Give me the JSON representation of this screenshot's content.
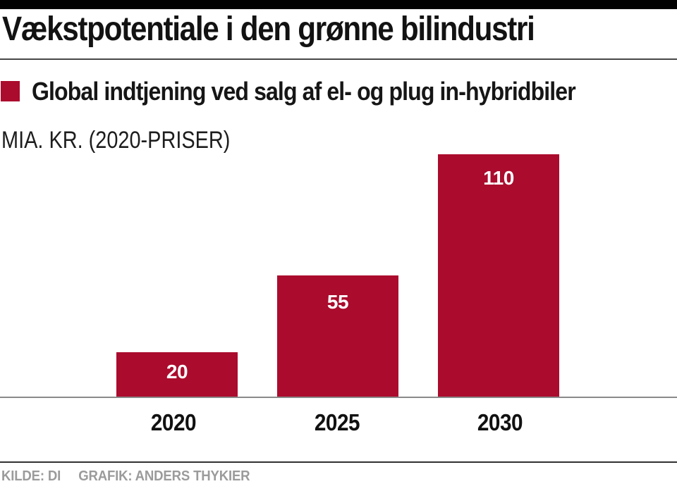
{
  "header": {
    "title": "Vækstpotentiale i den grønne bilindustri"
  },
  "legend": {
    "label": "Global indtjening ved salg af el- og plug in-hybridbiler",
    "swatch_color": "#AB0B2D"
  },
  "chart_data": {
    "type": "bar",
    "title": "Vækstpotentiale i den grønne bilindustri",
    "series_label": "Global indtjening ved salg af el- og plug in-hybridbiler",
    "unit_label": "MIA. KR. (2020-PRISER)",
    "categories": [
      "2020",
      "2025",
      "2030"
    ],
    "values": [
      20,
      55,
      110
    ],
    "ylabel": "MIA. KR. (2020-PRISER)",
    "xlabel": "",
    "ylim": [
      0,
      115
    ],
    "grid": false,
    "legend_position": "top-left",
    "value_labels_inside_bars": true,
    "bar_color": "#AB0B2D",
    "value_label_color": "#FFFFFF"
  },
  "footer": {
    "source": "KILDE: DI",
    "credit": "GRAFIK: ANDERS THYKIER"
  }
}
